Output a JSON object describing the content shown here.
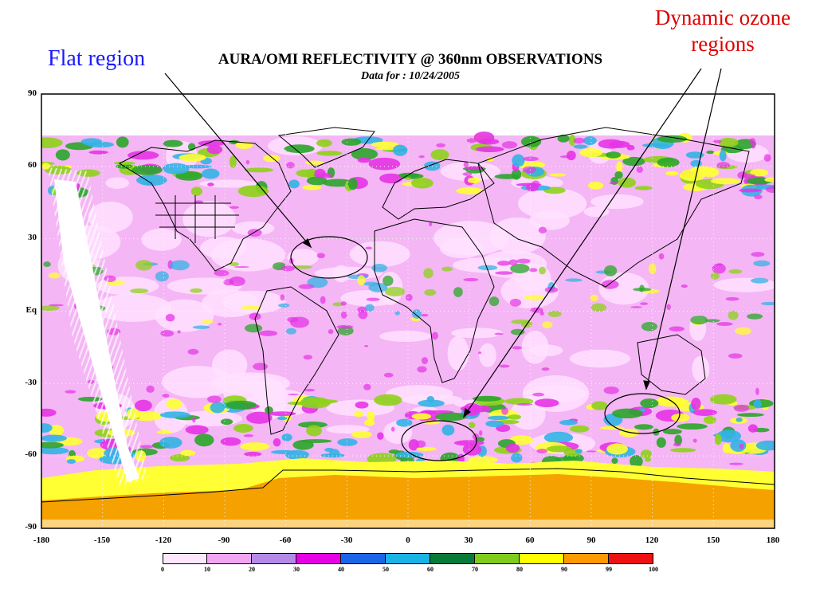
{
  "title": "AURA/OMI REFLECTIVITY @ 360nm OBSERVATIONS",
  "subtitle": "Data for : 10/24/2005",
  "annotations": {
    "flat_region": "Flat region",
    "dynamic_ozone_line1": "Dynamic ozone",
    "dynamic_ozone_line2": "regions"
  },
  "y_ticks": [
    "90",
    "60",
    "30",
    "Eq",
    "-30",
    "-60",
    "-90"
  ],
  "x_ticks": [
    "-180",
    "-150",
    "-120",
    "-90",
    "-60",
    "-30",
    "0",
    "30",
    "60",
    "90",
    "120",
    "150",
    "180"
  ],
  "colorbar": {
    "labels": [
      "0",
      "10",
      "20",
      "30",
      "40",
      "50",
      "60",
      "70",
      "80",
      "90",
      "99",
      "100"
    ],
    "colors": [
      "#ffe6ff",
      "#f2a6f2",
      "#b38ae6",
      "#e600e6",
      "#1a66e6",
      "#1ab3e6",
      "#0a7a3a",
      "#80cc1a",
      "#ffff00",
      "#ff9900",
      "#ee1111"
    ]
  },
  "map_colors": {
    "ice": "#f5a200",
    "yellow": "#ffff33",
    "green": "#2aa52a",
    "lime": "#8ed21a",
    "cyan": "#33b3e6",
    "magenta": "#e633e6",
    "pink": "#f2a6f2",
    "light": "#ffe0ff",
    "ocean_bg": "#f4b6f4"
  }
}
